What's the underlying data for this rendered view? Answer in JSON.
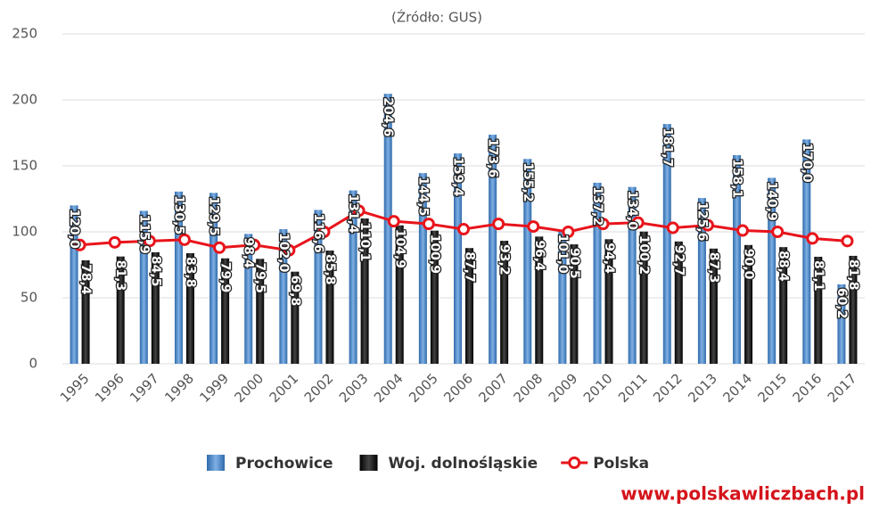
{
  "chart_data": {
    "type": "bar_line",
    "subtitle": "(Źródło: GUS)",
    "watermark": "www.polskawliczbach.pl",
    "categories": [
      "1995",
      "1996",
      "1997",
      "1998",
      "1999",
      "2000",
      "2001",
      "2002",
      "2003",
      "2004",
      "2005",
      "2006",
      "2007",
      "2008",
      "2009",
      "2010",
      "2011",
      "2012",
      "2013",
      "2014",
      "2015",
      "2016",
      "2017"
    ],
    "ylim": [
      0,
      250
    ],
    "yticks": [
      0,
      50,
      100,
      150,
      200,
      250
    ],
    "grid": true,
    "series": [
      {
        "name": "Prochowice",
        "type": "bar",
        "color": "#4a86c8",
        "values": [
          120.0,
          null,
          115.9,
          130.5,
          129.5,
          98.4,
          102.0,
          116.6,
          131.4,
          204.6,
          144.5,
          159.4,
          173.6,
          155.2,
          101.0,
          137.2,
          134.0,
          181.7,
          125.6,
          158.1,
          140.9,
          170.0,
          60.2
        ],
        "value_labels": [
          "120,0",
          null,
          "115,9",
          "130,5",
          "129,5",
          "98,4",
          "102,0",
          "116,6",
          "131,4",
          "204,6",
          "144,5",
          "159,4",
          "173,6",
          "155,2",
          "101,0",
          "137,2",
          "134,0",
          "181,7",
          "125,6",
          "158,1",
          "140,9",
          "170,0",
          "60,2"
        ]
      },
      {
        "name": "Woj. dolnośląskie",
        "type": "bar",
        "color": "#1a1a1a",
        "values": [
          78.4,
          81.3,
          84.5,
          83.8,
          79.9,
          79.5,
          69.8,
          85.8,
          110.1,
          104.9,
          100.9,
          87.7,
          93.2,
          96.4,
          90.5,
          94.4,
          100.2,
          92.7,
          87.3,
          90.0,
          88.4,
          81.1,
          81.8
        ],
        "value_labels": [
          "78,4",
          "81,3",
          "84,5",
          "83,8",
          "79,9",
          "79,5",
          "69,8",
          "85,8",
          "110,1",
          "104,9",
          "100,9",
          "87,7",
          "93,2",
          "96,4",
          "90,5",
          "94,4",
          "100,2",
          "92,7",
          "87,3",
          "90,0",
          "88,4",
          "81,1",
          "81,8"
        ]
      },
      {
        "name": "Polska",
        "type": "line",
        "color": "#e8141b",
        "values": [
          90,
          92,
          93,
          94,
          88,
          90,
          86,
          100,
          116,
          108,
          106,
          102,
          106,
          104,
          100,
          106,
          107,
          103,
          105,
          101,
          100,
          95,
          93
        ]
      }
    ]
  }
}
